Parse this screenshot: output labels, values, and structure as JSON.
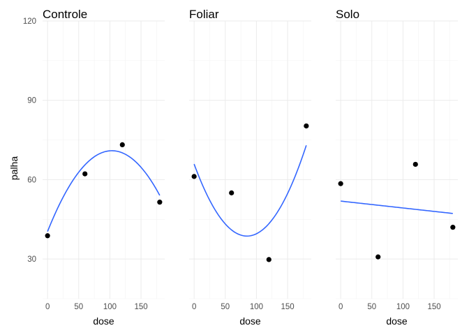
{
  "chart_data": {
    "type": "scatter",
    "ylabel": "palha",
    "xlabel": "dose",
    "ylim": [
      15,
      120
    ],
    "xlim": [
      -8,
      188
    ],
    "yticks": [
      30,
      60,
      90,
      120
    ],
    "xticks": [
      0,
      50,
      100,
      150
    ],
    "grid": true,
    "fit_color": "#3366ff",
    "point_color": "#000000",
    "panels": [
      {
        "title": "Controle",
        "points": [
          {
            "x": 0,
            "y": 38.8
          },
          {
            "x": 60,
            "y": 62.2
          },
          {
            "x": 120,
            "y": 73.2
          },
          {
            "x": 180,
            "y": 51.5
          }
        ],
        "fit_domain": [
          0,
          180
        ],
        "fit_coeffs": [
          40.4,
          0.5916,
          -0.002865
        ]
      },
      {
        "title": "Foliar",
        "points": [
          {
            "x": 0,
            "y": 61.2
          },
          {
            "x": 60,
            "y": 55.0
          },
          {
            "x": 120,
            "y": 29.8
          },
          {
            "x": 180,
            "y": 80.3
          }
        ],
        "fit_domain": [
          0,
          180
        ],
        "fit_coeffs": [
          65.9,
          -0.642,
          0.003785
        ]
      },
      {
        "title": "Solo",
        "points": [
          {
            "x": 0,
            "y": 58.5
          },
          {
            "x": 60,
            "y": 30.8
          },
          {
            "x": 120,
            "y": 65.8
          },
          {
            "x": 180,
            "y": 42.0
          }
        ],
        "fit_domain": [
          0,
          180
        ],
        "fit_coeffs": [
          51.9,
          -0.026,
          0
        ]
      }
    ]
  }
}
